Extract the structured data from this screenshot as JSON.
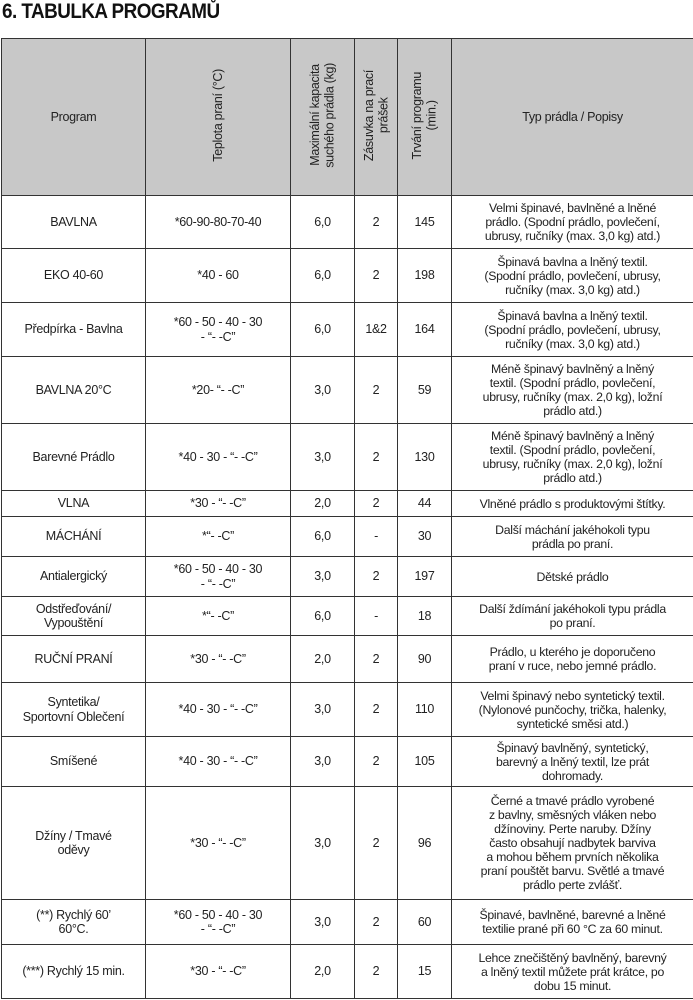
{
  "title": "6. TABULKA PROGRAMŮ",
  "headers": [
    "Program",
    "Teplota praní  (°C)",
    "Maximální kapacita\nsuchého prádla (kg)",
    "Zásuvka na prací\nprášek",
    "Trvání programu\n(min.)",
    "Typ prádla / Popisy"
  ],
  "rows": [
    {
      "program": "BAVLNA",
      "temp": "*60-90-80-70-40",
      "capacity": "6,0",
      "drawer": "2",
      "duration": "145",
      "desc": "Velmi špinavé, bavlněné a lněné\nprádlo. (Spodní prádlo, povlečení,\nubrusy, ručníky (max. 3,0 kg) atd.)"
    },
    {
      "program": "EKO 40-60",
      "temp": "*40 - 60",
      "capacity": "6,0",
      "drawer": "2",
      "duration": "198",
      "desc": "Špinavá bavlna a lněný textil.\n(Spodní prádlo, povlečení, ubrusy,\nručníky (max. 3,0 kg) atd.)"
    },
    {
      "program": "Předpírka - Bavlna",
      "temp": "*60 - 50 - 40 - 30\n- “- -C”",
      "capacity": "6,0",
      "drawer": "1&2",
      "duration": "164",
      "desc": "Špinavá bavlna a lněný textil.\n(Spodní prádlo, povlečení, ubrusy,\nručníky (max. 3,0 kg) atd.)"
    },
    {
      "program": "BAVLNA 20°C",
      "temp": "*20- “- -C”",
      "capacity": "3,0",
      "drawer": "2",
      "duration": "59",
      "desc": "Méně špinavý bavlněný a lněný\ntextil. (Spodní prádlo, povlečení,\nubrusy, ručníky (max. 2,0 kg), ložní\nprádlo atd.)"
    },
    {
      "program": "Barevné Prádlo",
      "temp": "*40 - 30 - “- -C”",
      "capacity": "3,0",
      "drawer": "2",
      "duration": "130",
      "desc": "Méně špinavý bavlněný a lněný\ntextil. (Spodní prádlo, povlečení,\nubrusy, ručníky (max. 2,0 kg), ložní\nprádlo atd.)"
    },
    {
      "program": "VLNA",
      "temp": "*30 - “- -C”",
      "capacity": "2,0",
      "drawer": "2",
      "duration": "44",
      "desc": "Vlněné prádlo s produktovými štítky."
    },
    {
      "program": "MÁCHÁNÍ",
      "temp": "*“- -C”",
      "capacity": "6,0",
      "drawer": "-",
      "duration": "30",
      "desc": "Další máchání jakéhokoli typu\nprádla po praní."
    },
    {
      "program": "Antialergický",
      "temp": "*60 - 50 - 40 - 30\n- “- -C”",
      "capacity": "3,0",
      "drawer": "2",
      "duration": "197",
      "desc": "Dětské prádlo"
    },
    {
      "program": "Odstřeďování/\nVypouštění",
      "temp": "*“- -C”",
      "capacity": "6,0",
      "drawer": "-",
      "duration": "18",
      "desc": "Další ždímání jakéhokoli typu prádla\npo praní."
    },
    {
      "program": "RUČNÍ PRANÍ",
      "temp": "*30 - “- -C”",
      "capacity": "2,0",
      "drawer": "2",
      "duration": "90",
      "desc": "Prádlo, u kterého je doporučeno\npraní v ruce, nebo jemné prádlo."
    },
    {
      "program": "Syntetika/\nSportovní Oblečení",
      "temp": "*40 - 30 - “- -C”",
      "capacity": "3,0",
      "drawer": "2",
      "duration": "110",
      "desc": "Velmi špinavý nebo syntetický textil.\n(Nylonové punčochy, trička, halenky,\nsyntetické směsi atd.)"
    },
    {
      "program": "Smíšené",
      "temp": "*40 - 30 - “- -C”",
      "capacity": "3,0",
      "drawer": "2",
      "duration": "105",
      "desc": "Špinavý bavlněný, syntetický,\nbarevný a lněný textil, lze prát\ndohromady."
    },
    {
      "program": "Džíny / Tmavé\noděvy",
      "temp": "*30 - “- -C”",
      "capacity": "3,0",
      "drawer": "2",
      "duration": "96",
      "desc": "Černé a tmavé prádlo vyrobené\nz bavlny, směsných vláken nebo\ndžínoviny. Perte naruby. Džíny\nčasto obsahují nadbytek barviva\na mohou během prvních několika\npraní pouštět barvu. Světlé a tmavé\nprádlo perte zvlášť."
    },
    {
      "program": "(**) Rychlý 60’\n60°C.",
      "temp": "*60 - 50 - 40 - 30\n- “- -C”",
      "capacity": "3,0",
      "drawer": "2",
      "duration": "60",
      "desc": "Špinavé, bavlněné, barevné a lněné\ntextilie prané při 60 °C za 60 minut."
    },
    {
      "program": "(***) Rychlý 15 min.",
      "temp": "*30 - “- -C”",
      "capacity": "2,0",
      "drawer": "2",
      "duration": "15",
      "desc": "Lehce znečištěný bavlněný, barevný\na lněný textil můžete prát krátce, po\ndobu 15 minut."
    }
  ]
}
